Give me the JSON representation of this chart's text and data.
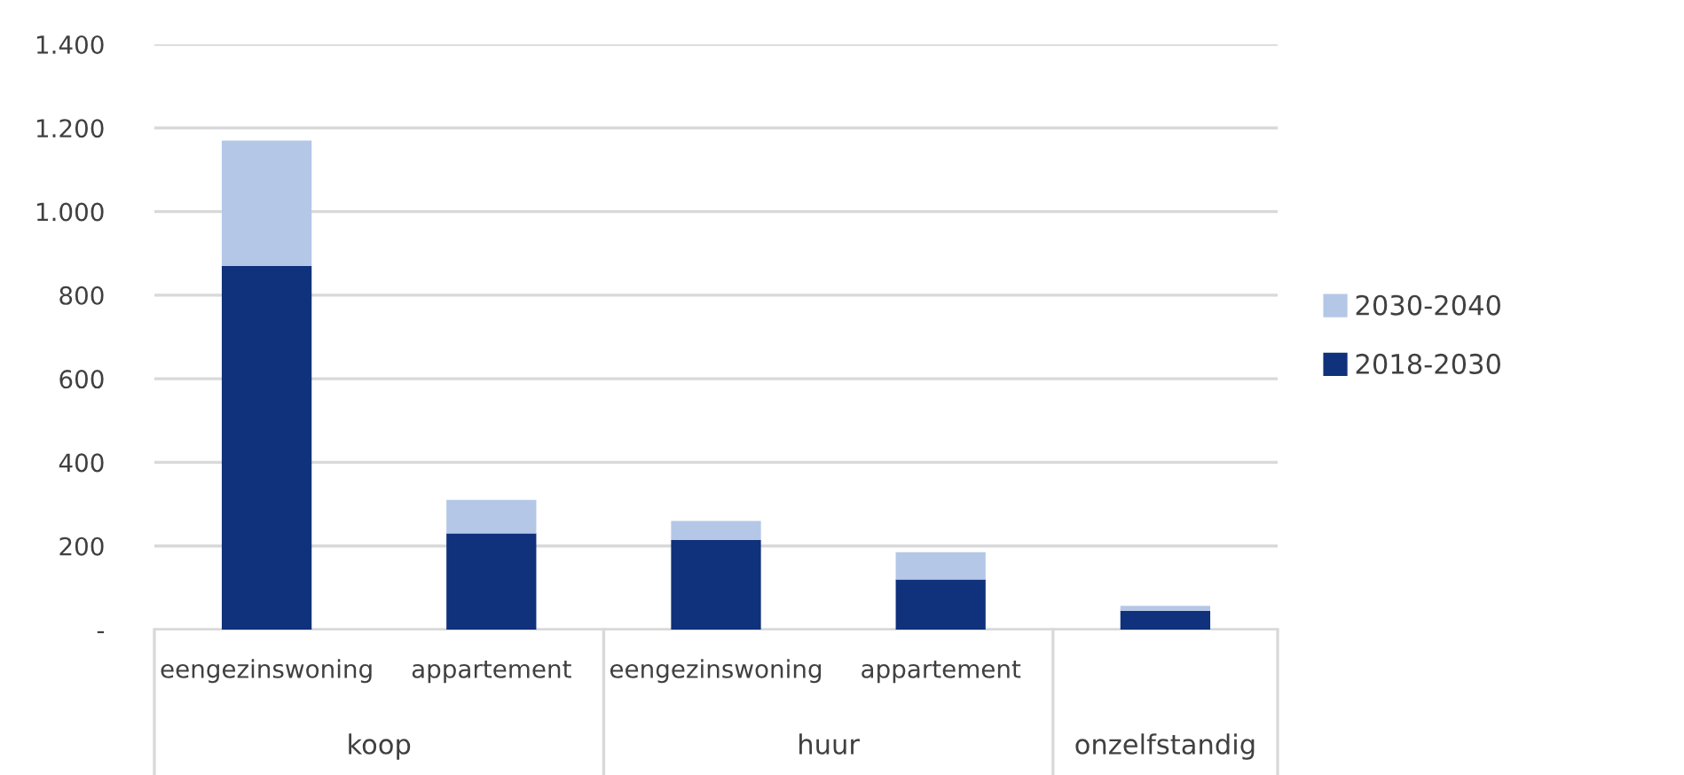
{
  "chart_data": {
    "type": "bar",
    "stacked": true,
    "categories": [
      "eengezinswoning",
      "appartement",
      "eengezinswoning",
      "appartement",
      null
    ],
    "series": [
      {
        "name": "2018-2030",
        "color": "#10317b",
        "values": [
          870,
          230,
          215,
          120,
          45
        ]
      },
      {
        "name": "2030-2040",
        "color": "#b4c7e7",
        "values": [
          300,
          80,
          45,
          65,
          12
        ]
      }
    ],
    "ylim": [
      0,
      1400
    ],
    "yticks": [
      {
        "value": 0,
        "label": "-"
      },
      {
        "value": 200,
        "label": "200"
      },
      {
        "value": 400,
        "label": "400"
      },
      {
        "value": 600,
        "label": "600"
      },
      {
        "value": 800,
        "label": "800"
      },
      {
        "value": 1000,
        "label": "1.000"
      },
      {
        "value": 1200,
        "label": "1.200"
      },
      {
        "value": 1400,
        "label": "1.400"
      }
    ],
    "annotations": [
      "koop",
      "huur",
      "onzelfstandig"
    ],
    "grid": "y",
    "legend": "right"
  }
}
